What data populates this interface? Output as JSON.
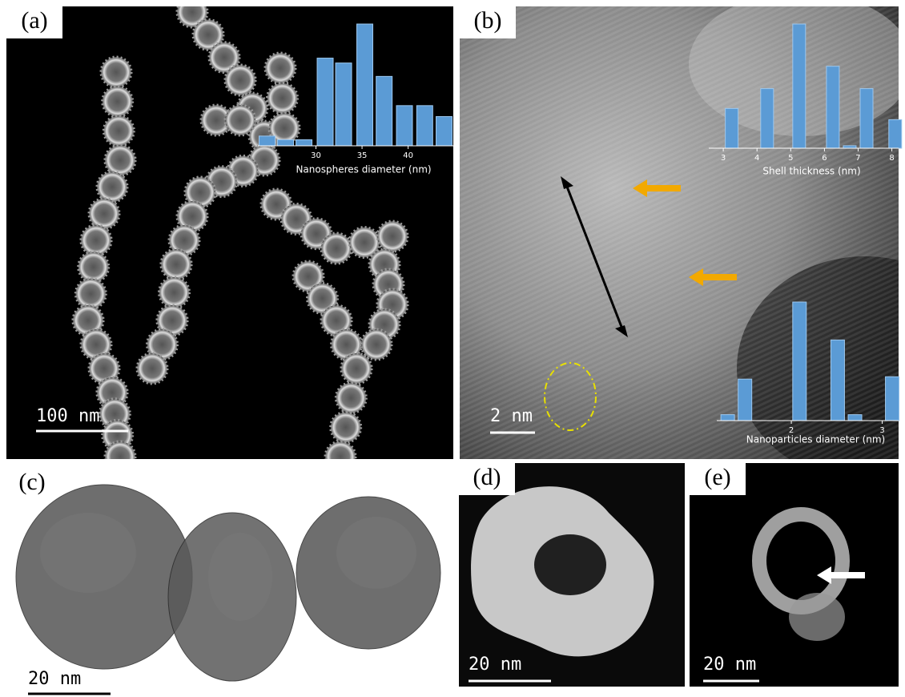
{
  "panels": [
    {
      "label": "(a)",
      "scale_bar": "100 nm"
    },
    {
      "label": "(b)",
      "scale_bar": "2 nm"
    },
    {
      "label": "(c)",
      "scale_bar": "20 nm"
    },
    {
      "label": "(d)",
      "scale_bar": "20 nm"
    },
    {
      "label": "(e)",
      "scale_bar": "20 nm"
    }
  ],
  "chart_data": [
    {
      "type": "bar",
      "x_label": "Nanospheres diameter (nm)",
      "x": [
        24.7,
        26.7,
        28.7,
        31,
        33,
        35.3,
        37.4,
        39.6,
        41.8,
        43.9
      ],
      "values": [
        8,
        5,
        5,
        72,
        68,
        100,
        57,
        33,
        33,
        24
      ],
      "color": "#5b9bd5",
      "xlim": [
        23.7,
        44.9
      ],
      "ylim": [
        0,
        100
      ],
      "xticks": [
        30,
        35,
        40
      ]
    },
    {
      "type": "bar",
      "x_label": "Shell thickness (nm)",
      "x": [
        3.25,
        4.3,
        5.25,
        6.25,
        6.75,
        7.25,
        8.1
      ],
      "values": [
        32,
        48,
        100,
        66,
        2,
        48,
        23
      ],
      "color": "#5b9bd5",
      "xlim": [
        2.57,
        8.2
      ],
      "ylim": [
        0,
        100
      ],
      "xticks": [
        3,
        4,
        5,
        6,
        7,
        8
      ]
    },
    {
      "type": "bar",
      "x_label": "Nanoparticles diameter (nm)",
      "x": [
        1.3,
        1.49,
        2.09,
        2.51,
        2.7,
        3.11
      ],
      "values": [
        5,
        35,
        100,
        68,
        5,
        37
      ],
      "color": "#5b9bd5",
      "xlim": [
        1.18,
        3.18
      ],
      "ylim": [
        0,
        100
      ],
      "xticks": [
        2,
        3
      ]
    }
  ]
}
